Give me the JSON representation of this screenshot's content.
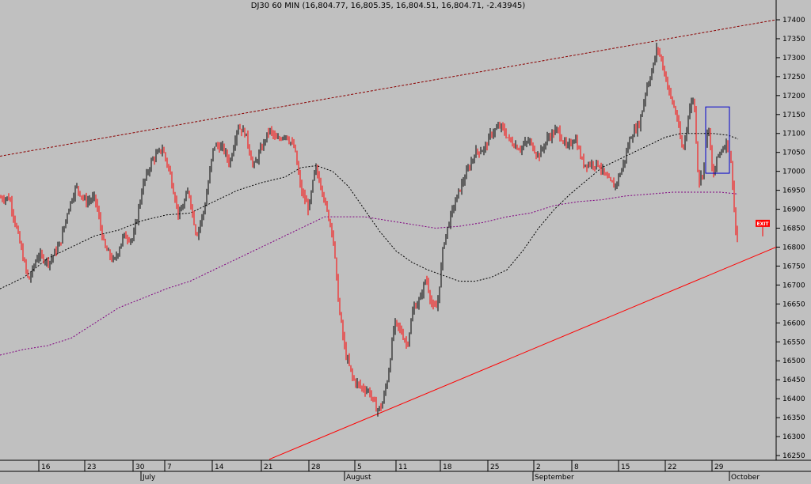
{
  "chart_data": {
    "type": "candlestick",
    "title": "DJ30 60 MIN (16,804.77, 16,805.35, 16,804.51, 16,804.71, -2.43945)",
    "ylim": [
      16240,
      17420
    ],
    "y_ticks": [
      16250,
      16300,
      16350,
      16400,
      16450,
      16500,
      16550,
      16600,
      16650,
      16700,
      16750,
      16800,
      16850,
      16900,
      16950,
      17000,
      17050,
      17100,
      17150,
      17200,
      17250,
      17300,
      17350,
      17400
    ],
    "x_day_labels": [
      "16",
      "23",
      "30",
      "7",
      "14",
      "21",
      "28",
      "5",
      "11",
      "18",
      "25",
      "2",
      "8",
      "15",
      "22",
      "29"
    ],
    "x_month_labels": [
      "July",
      "August",
      "September",
      "October"
    ],
    "grid": false,
    "price_path": [
      [
        0,
        16930
      ],
      [
        12,
        16930
      ],
      [
        24,
        16820
      ],
      [
        36,
        16710
      ],
      [
        48,
        16780
      ],
      [
        62,
        16760
      ],
      [
        76,
        16810
      ],
      [
        86,
        16900
      ],
      [
        96,
        16960
      ],
      [
        108,
        16920
      ],
      [
        120,
        16930
      ],
      [
        132,
        16800
      ],
      [
        144,
        16760
      ],
      [
        156,
        16830
      ],
      [
        168,
        16820
      ],
      [
        180,
        16960
      ],
      [
        192,
        17030
      ],
      [
        205,
        17060
      ],
      [
        214,
        17000
      ],
      [
        226,
        16880
      ],
      [
        238,
        16950
      ],
      [
        248,
        16830
      ],
      [
        258,
        16900
      ],
      [
        270,
        17070
      ],
      [
        282,
        17060
      ],
      [
        290,
        17020
      ],
      [
        300,
        17120
      ],
      [
        310,
        17100
      ],
      [
        320,
        17010
      ],
      [
        330,
        17060
      ],
      [
        340,
        17110
      ],
      [
        350,
        17080
      ],
      [
        360,
        17100
      ],
      [
        372,
        17060
      ],
      [
        380,
        16950
      ],
      [
        390,
        16900
      ],
      [
        398,
        17010
      ],
      [
        406,
        16960
      ],
      [
        412,
        16900
      ],
      [
        420,
        16840
      ],
      [
        428,
        16640
      ],
      [
        436,
        16520
      ],
      [
        446,
        16450
      ],
      [
        456,
        16430
      ],
      [
        466,
        16420
      ],
      [
        476,
        16370
      ],
      [
        482,
        16380
      ],
      [
        490,
        16460
      ],
      [
        498,
        16600
      ],
      [
        506,
        16580
      ],
      [
        514,
        16540
      ],
      [
        522,
        16640
      ],
      [
        530,
        16660
      ],
      [
        538,
        16720
      ],
      [
        546,
        16640
      ],
      [
        552,
        16640
      ],
      [
        560,
        16810
      ],
      [
        570,
        16890
      ],
      [
        580,
        16950
      ],
      [
        590,
        17000
      ],
      [
        600,
        17050
      ],
      [
        612,
        17060
      ],
      [
        620,
        17100
      ],
      [
        632,
        17120
      ],
      [
        644,
        17080
      ],
      [
        656,
        17060
      ],
      [
        668,
        17080
      ],
      [
        680,
        17040
      ],
      [
        692,
        17090
      ],
      [
        704,
        17110
      ],
      [
        716,
        17060
      ],
      [
        726,
        17090
      ],
      [
        736,
        17020
      ],
      [
        746,
        17020
      ],
      [
        756,
        17020
      ],
      [
        766,
        16980
      ],
      [
        776,
        16960
      ],
      [
        786,
        17010
      ],
      [
        796,
        17090
      ],
      [
        808,
        17130
      ],
      [
        816,
        17220
      ],
      [
        824,
        17270
      ],
      [
        830,
        17330
      ],
      [
        838,
        17270
      ],
      [
        846,
        17200
      ],
      [
        854,
        17150
      ],
      [
        862,
        17050
      ],
      [
        870,
        17160
      ],
      [
        876,
        17200
      ],
      [
        882,
        16970
      ],
      [
        888,
        17000
      ],
      [
        894,
        17130
      ],
      [
        900,
        16980
      ],
      [
        906,
        17040
      ],
      [
        912,
        17060
      ],
      [
        918,
        17080
      ],
      [
        924,
        17010
      ],
      [
        928,
        16860
      ],
      [
        932,
        16800
      ]
    ],
    "sma_fast_path": [
      [
        0,
        16690
      ],
      [
        30,
        16720
      ],
      [
        60,
        16770
      ],
      [
        90,
        16800
      ],
      [
        120,
        16830
      ],
      [
        150,
        16845
      ],
      [
        180,
        16870
      ],
      [
        210,
        16885
      ],
      [
        240,
        16890
      ],
      [
        270,
        16920
      ],
      [
        300,
        16950
      ],
      [
        330,
        16970
      ],
      [
        360,
        16985
      ],
      [
        380,
        17010
      ],
      [
        400,
        17015
      ],
      [
        420,
        17000
      ],
      [
        440,
        16960
      ],
      [
        460,
        16900
      ],
      [
        480,
        16840
      ],
      [
        500,
        16790
      ],
      [
        520,
        16760
      ],
      [
        540,
        16740
      ],
      [
        560,
        16725
      ],
      [
        580,
        16710
      ],
      [
        600,
        16710
      ],
      [
        620,
        16720
      ],
      [
        640,
        16740
      ],
      [
        660,
        16790
      ],
      [
        680,
        16850
      ],
      [
        700,
        16900
      ],
      [
        720,
        16940
      ],
      [
        740,
        16975
      ],
      [
        760,
        17010
      ],
      [
        780,
        17030
      ],
      [
        800,
        17050
      ],
      [
        820,
        17070
      ],
      [
        840,
        17090
      ],
      [
        860,
        17100
      ],
      [
        880,
        17100
      ],
      [
        900,
        17100
      ],
      [
        920,
        17095
      ],
      [
        932,
        17085
      ]
    ],
    "sma_slow_path": [
      [
        0,
        16515
      ],
      [
        30,
        16530
      ],
      [
        60,
        16540
      ],
      [
        90,
        16560
      ],
      [
        120,
        16600
      ],
      [
        150,
        16640
      ],
      [
        180,
        16665
      ],
      [
        210,
        16690
      ],
      [
        240,
        16710
      ],
      [
        270,
        16740
      ],
      [
        300,
        16770
      ],
      [
        330,
        16800
      ],
      [
        360,
        16830
      ],
      [
        390,
        16860
      ],
      [
        410,
        16880
      ],
      [
        430,
        16880
      ],
      [
        460,
        16880
      ],
      [
        490,
        16870
      ],
      [
        520,
        16860
      ],
      [
        550,
        16850
      ],
      [
        580,
        16855
      ],
      [
        610,
        16865
      ],
      [
        640,
        16880
      ],
      [
        670,
        16890
      ],
      [
        700,
        16910
      ],
      [
        730,
        16920
      ],
      [
        760,
        16925
      ],
      [
        790,
        16935
      ],
      [
        820,
        16940
      ],
      [
        850,
        16945
      ],
      [
        880,
        16945
      ],
      [
        910,
        16945
      ],
      [
        932,
        16940
      ]
    ],
    "upper_trendline": [
      [
        0,
        17040
      ],
      [
        980,
        17400
      ]
    ],
    "lower_trendline": [
      [
        340,
        16240
      ],
      [
        980,
        16800
      ]
    ],
    "highlight_box": [
      [
        891,
        17170
      ],
      [
        921,
        16995
      ]
    ],
    "exit_label": "EXIT",
    "exit_marker": [
      962,
      16820
    ],
    "colors": {
      "background": "#c0c0c0",
      "up_candle": "#000000",
      "down_candle": "#ff0000",
      "sma_fast": "#000000",
      "sma_slow": "#800080",
      "upper_trendline": "#8b0000",
      "lower_trendline": "#ff0000",
      "highlight_box": "#0000cc",
      "exit": "#ff0000"
    }
  }
}
